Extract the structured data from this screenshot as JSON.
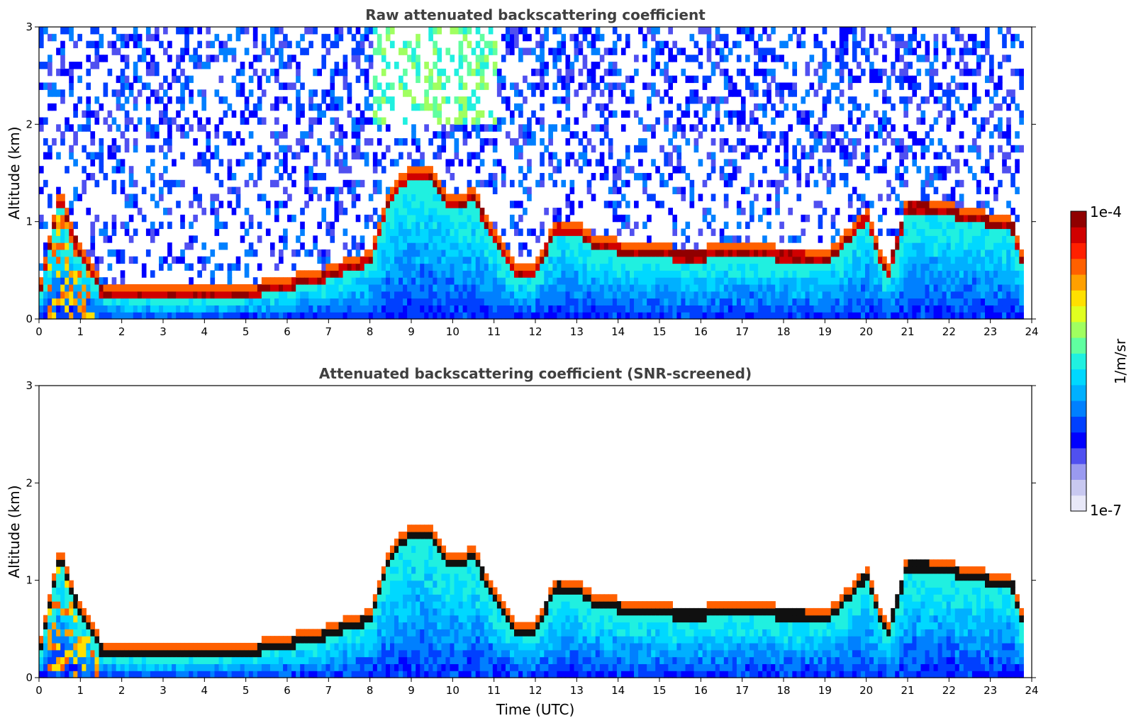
{
  "chart_data": [
    {
      "type": "heatmap",
      "title": "Raw attenuated backscattering coefficient",
      "xlabel": "",
      "ylabel": "Altitude (km)",
      "xlim": [
        0,
        24
      ],
      "ylim": [
        0,
        3
      ],
      "xticks": [
        "0",
        "1",
        "2",
        "3",
        "4",
        "5",
        "6",
        "7",
        "8",
        "9",
        "10",
        "11",
        "12",
        "13",
        "14",
        "15",
        "16",
        "17",
        "18",
        "19",
        "20",
        "21",
        "22",
        "23",
        "24"
      ],
      "yticks": [
        "0",
        "1",
        "2",
        "3"
      ],
      "time_utc": [
        0,
        0.5,
        1,
        1.5,
        2,
        2.5,
        3,
        3.5,
        4,
        4.5,
        5,
        5.5,
        6,
        6.5,
        7,
        7.5,
        8,
        8.5,
        9,
        9.5,
        10,
        10.5,
        11,
        11.5,
        12,
        12.5,
        13,
        13.5,
        14,
        14.5,
        15,
        15.5,
        16,
        16.5,
        17,
        17.5,
        18,
        18.5,
        19,
        19.5,
        20,
        20.5,
        21,
        21.5,
        22,
        22.5,
        23,
        23.5,
        23.8
      ],
      "layer_top_km": [
        0.2,
        1.2,
        0.6,
        0.25,
        0.2,
        0.18,
        0.18,
        0.2,
        0.2,
        0.2,
        0.22,
        0.26,
        0.3,
        0.35,
        0.4,
        0.5,
        0.55,
        1.2,
        1.45,
        1.4,
        1.1,
        1.2,
        0.8,
        0.45,
        0.42,
        0.9,
        0.85,
        0.7,
        0.68,
        0.62,
        0.62,
        0.6,
        0.6,
        0.62,
        0.65,
        0.62,
        0.6,
        0.6,
        0.55,
        0.75,
        1.0,
        0.4,
        1.1,
        1.1,
        1.05,
        1.0,
        0.95,
        0.95,
        0.5
      ],
      "noise": "high",
      "colorscale": "jet"
    },
    {
      "type": "heatmap",
      "title": "Attenuated backscattering coefficient (SNR-screened)",
      "xlabel": "Time (UTC)",
      "ylabel": "Altitude (km)",
      "xlim": [
        0,
        24
      ],
      "ylim": [
        0,
        3
      ],
      "xticks": [
        "0",
        "1",
        "2",
        "3",
        "4",
        "5",
        "6",
        "7",
        "8",
        "9",
        "10",
        "11",
        "12",
        "13",
        "14",
        "15",
        "16",
        "17",
        "18",
        "19",
        "20",
        "21",
        "22",
        "23",
        "24"
      ],
      "yticks": [
        "0",
        "1",
        "2",
        "3"
      ],
      "time_utc": [
        0,
        0.5,
        1,
        1.5,
        2,
        2.5,
        3,
        3.5,
        4,
        4.5,
        5,
        5.5,
        6,
        6.5,
        7,
        7.5,
        8,
        8.5,
        9,
        9.5,
        10,
        10.5,
        11,
        11.5,
        12,
        12.5,
        13,
        13.5,
        14,
        14.5,
        15,
        15.5,
        16,
        16.5,
        17,
        17.5,
        18,
        18.5,
        19,
        19.5,
        20,
        20.5,
        21,
        21.5,
        22,
        22.5,
        23,
        23.5,
        23.8
      ],
      "layer_top_km": [
        0.2,
        1.2,
        0.6,
        0.25,
        0.2,
        0.18,
        0.18,
        0.2,
        0.2,
        0.2,
        0.22,
        0.26,
        0.3,
        0.35,
        0.4,
        0.5,
        0.55,
        1.2,
        1.45,
        1.4,
        1.1,
        1.2,
        0.8,
        0.45,
        0.42,
        0.9,
        0.85,
        0.7,
        0.68,
        0.62,
        0.62,
        0.6,
        0.6,
        0.62,
        0.65,
        0.62,
        0.6,
        0.6,
        0.55,
        0.75,
        1.0,
        0.4,
        1.1,
        1.1,
        1.05,
        1.0,
        0.95,
        0.95,
        0.5
      ],
      "noise": "screened",
      "colorscale": "jet"
    }
  ],
  "colorbar": {
    "label": "1/m/sr",
    "max_label": "1e-4",
    "min_label": "1e-7",
    "colors": [
      "#e8e8f8",
      "#c8c8f0",
      "#9a9af0",
      "#5050f0",
      "#0000ff",
      "#0040ff",
      "#0080ff",
      "#00b0ff",
      "#00d8ff",
      "#20f0e0",
      "#60ffa0",
      "#a0ff60",
      "#e0ff20",
      "#ffe000",
      "#ffa000",
      "#ff6000",
      "#ff2000",
      "#d00000",
      "#900000"
    ]
  }
}
